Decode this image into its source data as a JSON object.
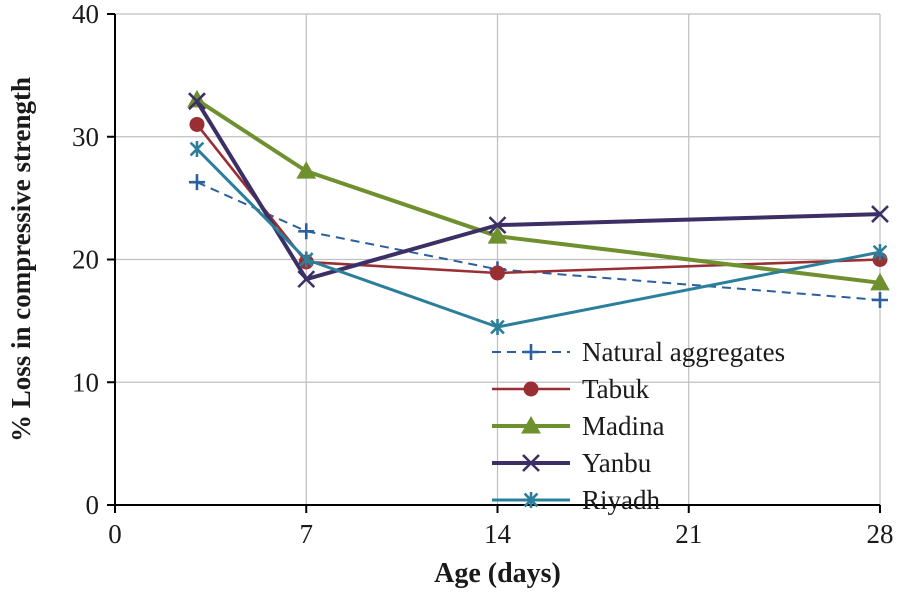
{
  "figure": {
    "background": "#ffffff",
    "grid_color": "#bfbfbf",
    "axis_color": "#000000",
    "text_color": "#1a1a1a"
  },
  "chart_data": {
    "type": "line",
    "title": "",
    "xlabel": "Age (days)",
    "ylabel": "% Loss in compressive strength",
    "xlim": [
      0,
      28
    ],
    "ylim": [
      0,
      40
    ],
    "xticks": [
      0,
      7,
      14,
      21,
      28
    ],
    "yticks": [
      0,
      10,
      20,
      30,
      40
    ],
    "grid": true,
    "legend_position": "inside lower right",
    "x": [
      3,
      7,
      14,
      28
    ],
    "series": [
      {
        "name": "Natural aggregates",
        "marker": "plus",
        "dashed": true,
        "color": "#2c5f9e",
        "line_width": 2,
        "values": [
          26.3,
          22.3,
          19.2,
          16.7
        ]
      },
      {
        "name": "Tabuk",
        "marker": "circle",
        "dashed": false,
        "color": "#9a2f33",
        "line_width": 2.6,
        "values": [
          31.0,
          19.8,
          18.9,
          20.0
        ]
      },
      {
        "name": "Madina",
        "marker": "triangle",
        "dashed": false,
        "color": "#6f902f",
        "line_width": 4,
        "values": [
          33.0,
          27.2,
          21.9,
          18.1
        ]
      },
      {
        "name": "Yanbu",
        "marker": "x",
        "dashed": false,
        "color": "#3c2f66",
        "line_width": 4,
        "values": [
          32.9,
          18.4,
          22.8,
          23.7
        ]
      },
      {
        "name": "Riyadh",
        "marker": "asterisk",
        "dashed": false,
        "color": "#2b7f9b",
        "line_width": 3,
        "values": [
          29.0,
          20.0,
          14.5,
          20.6
        ]
      }
    ]
  }
}
